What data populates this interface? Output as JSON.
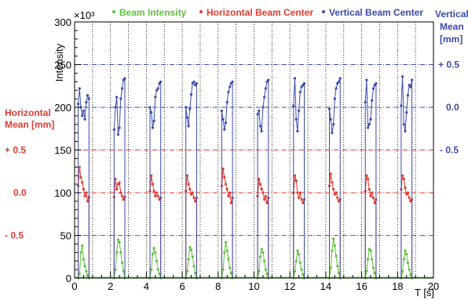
{
  "chart_data": {
    "type": "line",
    "xlabel": "T [s]",
    "ylabel": "Intensity",
    "y_multiplier": "×10³",
    "xlim": [
      0,
      20
    ],
    "ylim": [
      0,
      300
    ],
    "x_ticks": [
      0,
      2,
      4,
      6,
      8,
      10,
      12,
      14,
      16,
      18,
      20
    ],
    "y_ticks": [
      0,
      50,
      100,
      150,
      200,
      250,
      300
    ],
    "grid": "dotted vertical lines every 1 s, dash-dot horizontal reference lines",
    "legend": "top",
    "colors": {
      "intensity": "#5fbf3c",
      "horizontal": "#e03a2f",
      "vertical": "#3b4aa8"
    },
    "legend_entries": {
      "intensity": "Beam Intensity",
      "horizontal": "Horizontal Beam Center",
      "vertical": "Vertical Beam Center"
    },
    "left_axis": {
      "title_line1": "Horizontal",
      "title_line2": "Mean [mm]",
      "labels": [
        {
          "text": "+ 0.5",
          "at": 150
        },
        {
          "text": "0.0",
          "at": 100
        },
        {
          "text": "- 0.5",
          "at": 50
        }
      ]
    },
    "right_axis": {
      "title_line1": "Vertical",
      "title_line2": "Mean",
      "title_line3": "[mm]",
      "labels": [
        {
          "text": "+ 0.5",
          "at": 250
        },
        {
          "text": "0.0",
          "at": 200
        },
        {
          "text": "- 0.5",
          "at": 150
        }
      ]
    },
    "reference_lines": [
      {
        "at": 250,
        "color": "vertical"
      },
      {
        "at": 200,
        "color": "vertical"
      },
      {
        "at": 150,
        "color": "horizontal"
      },
      {
        "at": 100,
        "color": "horizontal"
      },
      {
        "at": 50,
        "color": "horizontal"
      }
    ],
    "spill_starts": [
      0.2,
      2.2,
      4.2,
      6.2,
      8.2,
      10.2,
      12.2,
      14.2,
      16.2,
      18.2
    ],
    "spill_duration": 0.6,
    "spill_shapes": {
      "intensity": [
        [
          0,
          5,
          30,
          38,
          22,
          14,
          8,
          3,
          0
        ],
        [
          0,
          10,
          30,
          45,
          42,
          30,
          18,
          8,
          0
        ],
        [
          0,
          10,
          28,
          35,
          30,
          20,
          10,
          5,
          0
        ],
        [
          0,
          8,
          22,
          36,
          33,
          25,
          14,
          6,
          0
        ],
        [
          0,
          10,
          30,
          42,
          32,
          22,
          12,
          6,
          0
        ],
        [
          0,
          8,
          25,
          34,
          30,
          20,
          10,
          5,
          0
        ],
        [
          0,
          8,
          20,
          32,
          28,
          18,
          10,
          4,
          0
        ],
        [
          0,
          12,
          32,
          46,
          38,
          26,
          14,
          6,
          0
        ],
        [
          0,
          8,
          22,
          34,
          32,
          22,
          12,
          6,
          0
        ],
        [
          0,
          8,
          22,
          32,
          28,
          18,
          10,
          4,
          0
        ]
      ],
      "horizontal": [
        [
          108,
          130,
          118,
          112,
          104,
          96,
          100,
          90,
          95
        ],
        [
          95,
          116,
          104,
          110,
          112,
          100,
          96,
          92,
          95
        ],
        [
          102,
          120,
          110,
          102,
          96,
          100,
          96,
          92,
          94
        ],
        [
          102,
          120,
          110,
          104,
          98,
          100,
          94,
          90,
          94
        ],
        [
          108,
          128,
          118,
          110,
          104,
          96,
          100,
          88,
          94
        ],
        [
          96,
          116,
          110,
          104,
          100,
          92,
          96,
          88,
          94
        ],
        [
          100,
          120,
          114,
          100,
          94,
          100,
          92,
          88,
          92
        ],
        [
          108,
          122,
          112,
          104,
          98,
          100,
          94,
          90,
          92
        ],
        [
          102,
          120,
          116,
          104,
          96,
          100,
          94,
          88,
          92
        ],
        [
          104,
          120,
          116,
          106,
          98,
          100,
          94,
          90,
          92
        ]
      ],
      "vertical": [
        [
          204,
          222,
          200,
          190,
          196,
          186,
          206,
          214,
          210
        ],
        [
          174,
          200,
          212,
          168,
          176,
          210,
          222,
          232,
          234
        ],
        [
          200,
          194,
          176,
          184,
          212,
          220,
          222,
          228,
          230
        ],
        [
          200,
          188,
          178,
          198,
          215,
          228,
          230,
          226,
          228
        ],
        [
          196,
          186,
          174,
          182,
          206,
          218,
          224,
          228,
          230
        ],
        [
          192,
          196,
          178,
          172,
          200,
          212,
          222,
          230,
          232
        ],
        [
          202,
          234,
          186,
          172,
          196,
          218,
          224,
          226,
          228
        ],
        [
          198,
          186,
          170,
          180,
          210,
          222,
          228,
          230,
          234
        ],
        [
          206,
          232,
          176,
          180,
          186,
          208,
          222,
          226,
          228
        ],
        [
          202,
          236,
          180,
          172,
          194,
          214,
          226,
          224,
          232
        ]
      ]
    }
  }
}
